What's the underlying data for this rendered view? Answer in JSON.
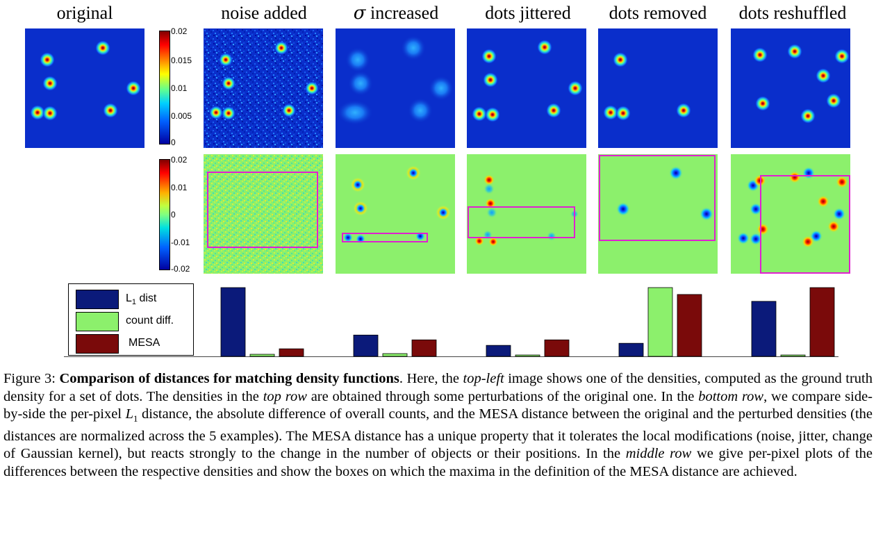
{
  "columns": [
    {
      "key": "original",
      "title": "original"
    },
    {
      "key": "noise",
      "title": "noise added"
    },
    {
      "key": "sigma",
      "title_symbol": "σ",
      "title": " increased"
    },
    {
      "key": "jitter",
      "title": "dots jittered"
    },
    {
      "key": "removed",
      "title": "dots removed"
    },
    {
      "key": "reshuffled",
      "title": "dots reshuffled"
    }
  ],
  "colorbar_top": {
    "ticks": [
      "0.02",
      "0.015",
      "0.01",
      "0.005",
      "0"
    ]
  },
  "colorbar_mid": {
    "ticks": [
      "0.02",
      "0.01",
      "0",
      "-0.01",
      "-0.02"
    ]
  },
  "colors": {
    "bg_blue": "#0a2ecb",
    "bg_green": "#8cf06c",
    "box": "#e020d0",
    "l1": "#0b1a7a",
    "count": "#8cf06c",
    "mesa": "#7a0a0a"
  },
  "chart_data": {
    "type": "bar",
    "categories": [
      "noise added",
      "σ increased",
      "dots jittered",
      "dots removed",
      "dots reshuffled"
    ],
    "series": [
      {
        "name": "L1 dist",
        "values": [
          1.0,
          0.31,
          0.16,
          0.19,
          0.8
        ]
      },
      {
        "name": "count diff.",
        "values": [
          0.03,
          0.04,
          0.02,
          1.0,
          0.02
        ]
      },
      {
        "name": "MESA",
        "values": [
          0.11,
          0.24,
          0.24,
          0.9,
          1.0
        ]
      }
    ],
    "ylim": [
      0,
      1
    ],
    "grid": false,
    "legend_position": "left"
  },
  "legend": {
    "l1_main": "L",
    "l1_sub": "1",
    "l1_rest": " dist",
    "count": "count diff.",
    "mesa": "MESA"
  },
  "caption": {
    "label": "Figure 3: ",
    "bold": "Comparison of distances for matching density functions",
    "t1": ". Here, the ",
    "e1": "top-left",
    "t2": " image shows one of the densities, computed as the ground truth density for a set of dots. The densities in the ",
    "e2": "top row",
    "t3": " are obtained through some perturbations of the original one. In the ",
    "e3": "bottom row",
    "t4": ", we compare side-by-side the per-pixel ",
    "m1": "L",
    "m1sub": "1",
    "t5": " distance, the absolute difference of overall counts, and the MESA distance between the original and the perturbed densities (the distances are normalized across the 5 examples). The MESA distance has a unique property that it tolerates the local modifications (noise, jitter, change of Gaussian kernel), but reacts strongly to the change in the number of objects or their positions. In the ",
    "e4": "middle row",
    "t6": " we give per-pixel plots of the differences between the respective densities and show the boxes on which the maxima in the definition of the MESA distance are achieved."
  }
}
